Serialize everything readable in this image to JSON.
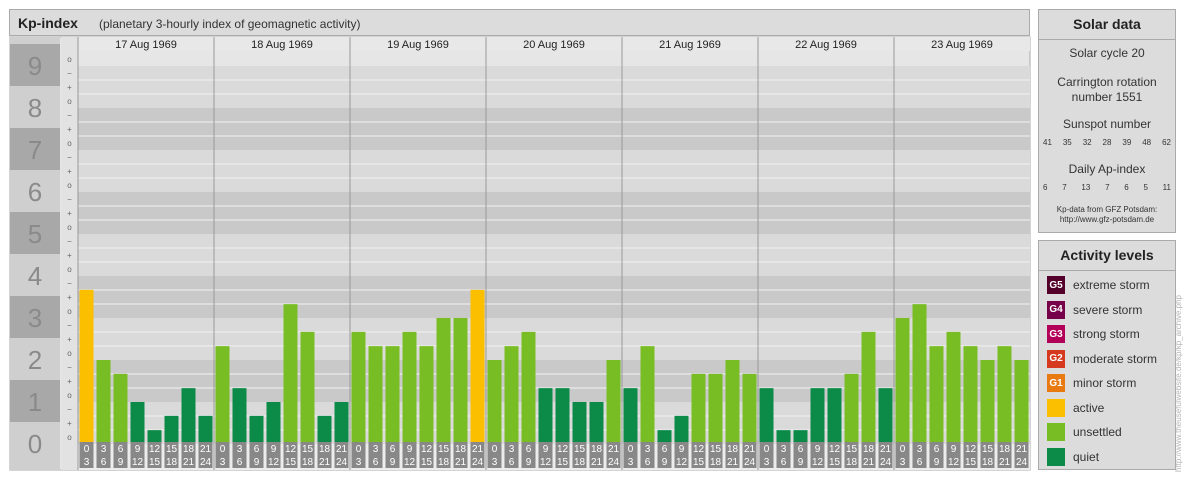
{
  "header": {
    "title": "Kp-index",
    "subtitle": "(planetary 3-hourly index of geomagnetic activity)"
  },
  "chart_data": {
    "type": "bar",
    "y_axis_labels": [
      "0",
      "1",
      "2",
      "3",
      "4",
      "5",
      "6",
      "7",
      "8",
      "9"
    ],
    "minor_labels": [
      "o",
      "+",
      "−",
      "o",
      "+",
      "−",
      "o",
      "+",
      "−",
      "o",
      "+",
      "−",
      "o",
      "+",
      "−",
      "o",
      "+",
      "−",
      "o",
      "+",
      "−",
      "o",
      "+",
      "−",
      "o",
      "+",
      "−",
      "o"
    ],
    "ylim": [
      0,
      9
    ],
    "days": [
      "17 Aug 1969",
      "18 Aug 1969",
      "19 Aug 1969",
      "20 Aug 1969",
      "21 Aug 1969",
      "22 Aug 1969",
      "23 Aug 1969"
    ],
    "hour_ticks": [
      [
        "0",
        "3"
      ],
      [
        "3",
        "6"
      ],
      [
        "6",
        "9"
      ],
      [
        "9",
        "12"
      ],
      [
        "12",
        "15"
      ],
      [
        "15",
        "18"
      ],
      [
        "18",
        "21"
      ],
      [
        "21",
        "24"
      ]
    ],
    "values": [
      [
        3.67,
        2.0,
        1.67,
        1.0,
        0.33,
        0.67,
        1.33,
        0.67
      ],
      [
        2.33,
        1.33,
        0.67,
        1.0,
        3.33,
        2.67,
        0.67,
        1.0
      ],
      [
        2.67,
        2.33,
        2.33,
        2.67,
        2.33,
        3.0,
        3.0,
        3.67
      ],
      [
        2.0,
        2.33,
        2.67,
        1.33,
        1.33,
        1.0,
        1.0,
        2.0
      ],
      [
        1.33,
        2.33,
        0.33,
        0.67,
        1.67,
        1.67,
        2.0,
        1.67
      ],
      [
        1.33,
        0.33,
        0.33,
        1.33,
        1.33,
        1.67,
        2.67,
        1.33
      ],
      [
        3.0,
        3.33,
        2.33,
        2.67,
        2.33,
        2.0,
        2.33,
        2.0
      ]
    ],
    "colors": {
      "active": "#fbbf00",
      "unsettled": "#78bd24",
      "quiet": "#0c8a47"
    }
  },
  "solar": {
    "title": "Solar data",
    "cycle": "Solar cycle 20",
    "carrington_line1": "Carrington rotation",
    "carrington_line2": "number 1551",
    "sunspot_title": "Sunspot number",
    "sunspot_values": [
      "41",
      "35",
      "32",
      "28",
      "39",
      "48",
      "62"
    ],
    "ap_title": "Daily Ap-index",
    "ap_values": [
      "6",
      "7",
      "13",
      "7",
      "6",
      "5",
      "11"
    ],
    "credit_line1": "Kp-data from GFZ Potsdam:",
    "credit_line2": "http://www.gfz-potsdam.de"
  },
  "activity": {
    "title": "Activity levels",
    "items": [
      {
        "code": "G5",
        "label": "extreme storm",
        "color": "#53002a"
      },
      {
        "code": "G4",
        "label": "severe storm",
        "color": "#77004a"
      },
      {
        "code": "G3",
        "label": "strong storm",
        "color": "#b20059"
      },
      {
        "code": "G2",
        "label": "moderate storm",
        "color": "#d63a1e"
      },
      {
        "code": "G1",
        "label": "minor storm",
        "color": "#e87a11"
      },
      {
        "code": "",
        "label": "active",
        "color": "#fbbf00"
      },
      {
        "code": "",
        "label": "unsettled",
        "color": "#78bd24"
      },
      {
        "code": "",
        "label": "quiet",
        "color": "#0c8a47"
      }
    ]
  },
  "page_credit": "http://www.theusefulwebsite.de/kp/kp_archive.php"
}
